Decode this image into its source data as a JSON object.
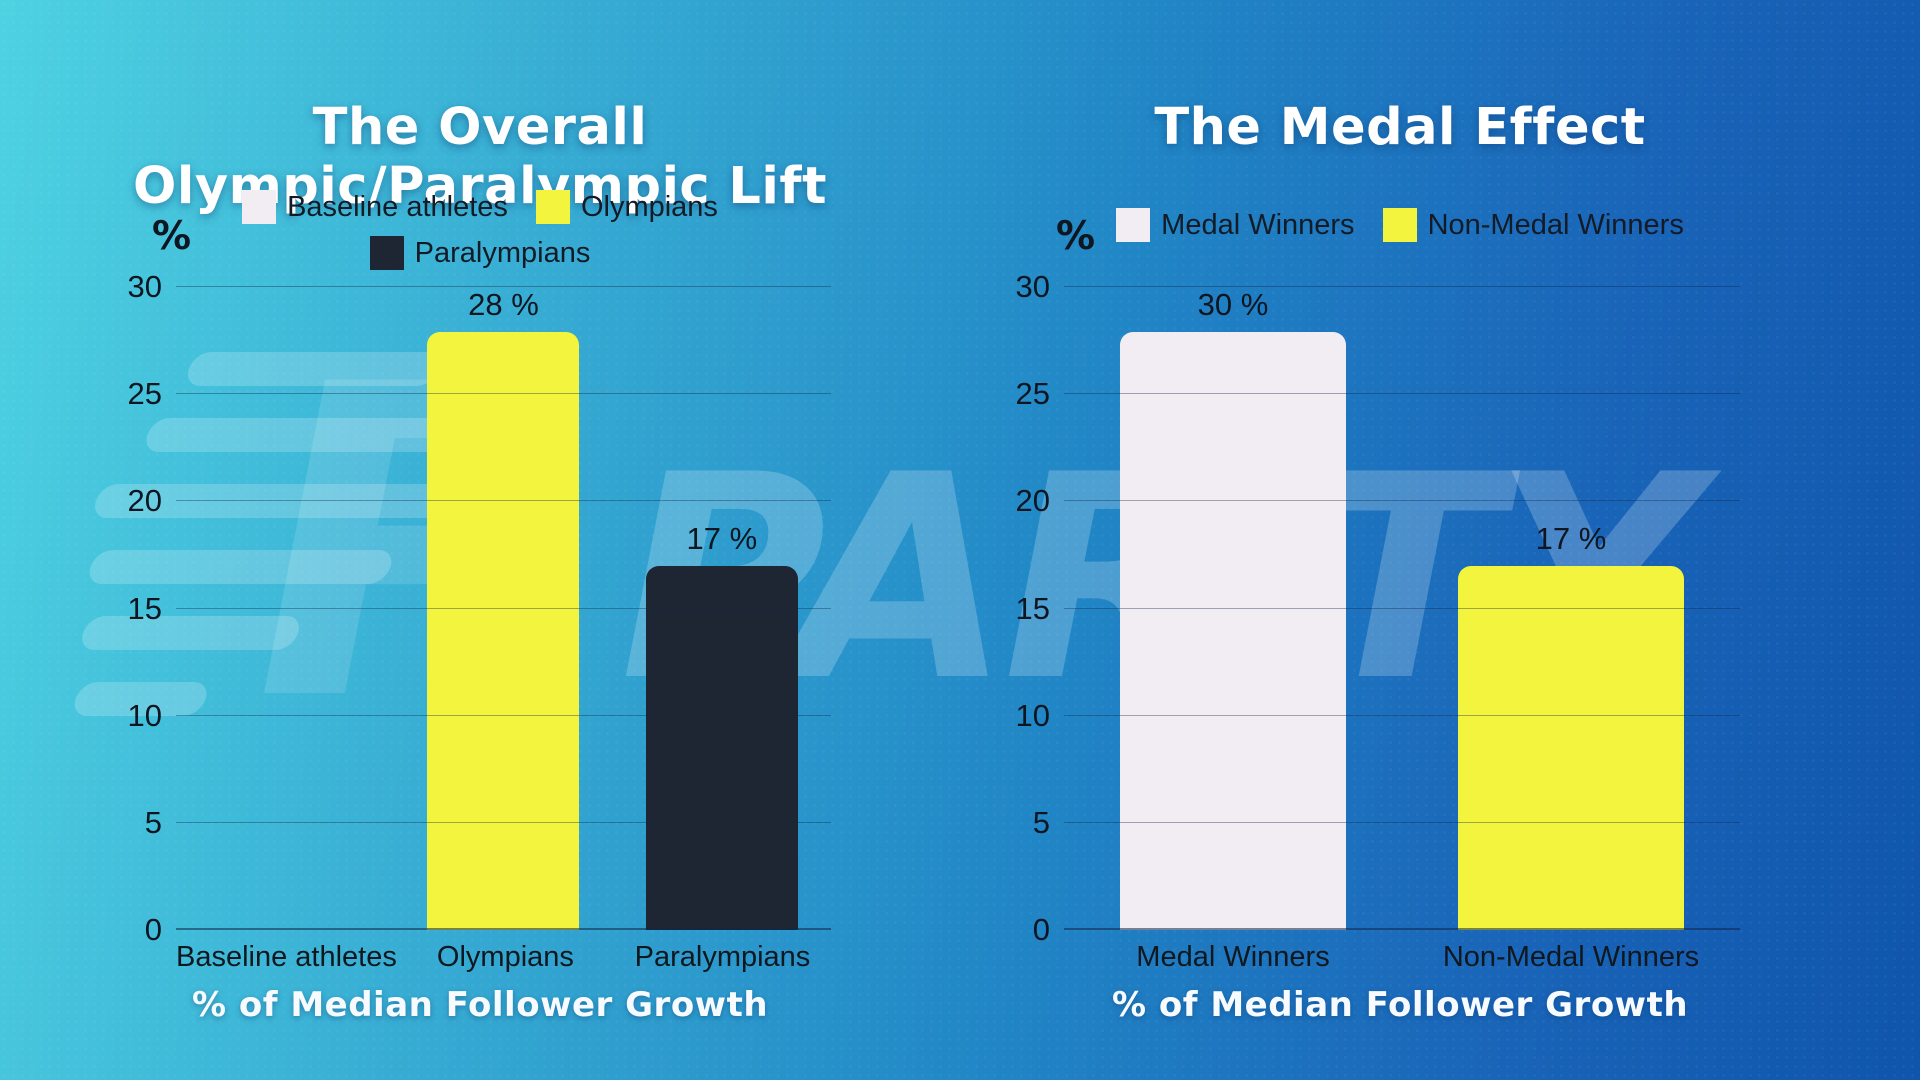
{
  "watermark": {
    "text": "PARITY",
    "logo": "parity-speedline-p-logo"
  },
  "colors": {
    "background_left": "#4ED2E2",
    "background_right": "#0F55AC",
    "yellow_bar": "#F2F43D",
    "dark_navy_bar": "#1F2633",
    "white_bar": "#F1EDF2",
    "axis_text": "#0E1621",
    "title_text": "#FFFFFF"
  },
  "chart_data": [
    {
      "type": "bar",
      "title": "The Overall Olympic/Paralympic Lift",
      "categories": [
        "Baseline athletes",
        "Olympians",
        "Paralympians"
      ],
      "values": [
        0,
        28,
        17
      ],
      "value_labels": [
        "",
        "28 %",
        "17 %"
      ],
      "bar_colors": [
        "#F1EDF2",
        "#F2F43D",
        "#1F2633"
      ],
      "legend": [
        {
          "label": "Baseline athletes",
          "color": "#F1EDF2"
        },
        {
          "label": "Olympians",
          "color": "#F2F43D"
        },
        {
          "label": "Paralympians",
          "color": "#1F2633"
        }
      ],
      "legend_position": "top",
      "xlabel": "% of Median Follower Growth",
      "ylabel": "%",
      "ylim": [
        0,
        30
      ],
      "y_ticks": [
        0,
        5,
        10,
        15,
        20,
        25,
        30
      ],
      "grid": true
    },
    {
      "type": "bar",
      "title": "The Medal Effect",
      "categories": [
        "Medal Winners",
        "Non-Medal Winners"
      ],
      "values": [
        30,
        17
      ],
      "value_labels": [
        "30 %",
        "17 %"
      ],
      "bar_colors": [
        "#F1EDF2",
        "#F2F43D"
      ],
      "legend": [
        {
          "label": "Medal Winners",
          "color": "#F1EDF2"
        },
        {
          "label": "Non-Medal Winners",
          "color": "#F2F43D"
        }
      ],
      "legend_position": "top",
      "xlabel": "% of Median Follower Growth",
      "ylabel": "%",
      "ylim": [
        0,
        30
      ],
      "y_ticks": [
        0,
        5,
        10,
        15,
        20,
        25,
        30
      ],
      "grid": true
    }
  ]
}
